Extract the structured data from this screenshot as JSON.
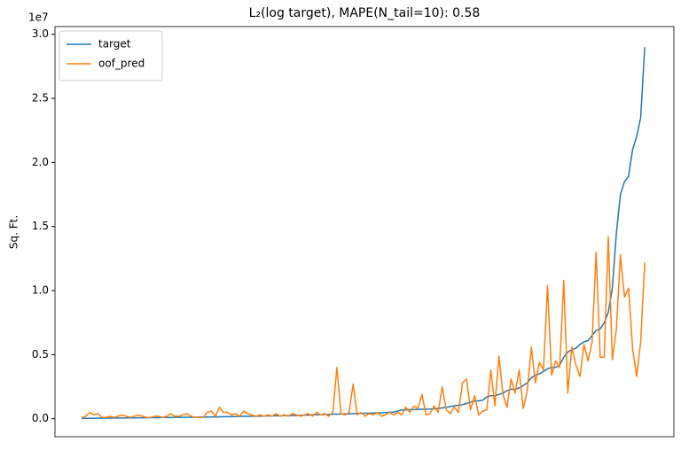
{
  "chart_data": {
    "type": "line",
    "title": "L₂(log target), MAPE(N_tail=10): 0.58",
    "ylabel": "Sq. Ft.",
    "y_offset_label": "1e7",
    "xlim": [
      -6.6,
      146.2
    ],
    "ylim": [
      -0.14,
      3.06
    ],
    "yticks": [
      {
        "value": 0,
        "label": "0.0"
      },
      0.5,
      {
        "value": 1,
        "label": "1.0"
      },
      1.5,
      {
        "value": 2,
        "label": "2.0"
      },
      2.5,
      {
        "value": 3,
        "label": "3.0"
      }
    ],
    "grid": false,
    "legend": "upper left",
    "series": [
      {
        "name": "target",
        "color": "#1f77b4",
        "values": [
          0.002,
          0.003,
          0.003,
          0.004,
          0.004,
          0.005,
          0.005,
          0.005,
          0.006,
          0.006,
          0.006,
          0.007,
          0.007,
          0.007,
          0.008,
          0.008,
          0.008,
          0.009,
          0.009,
          0.009,
          0.01,
          0.01,
          0.01,
          0.011,
          0.011,
          0.011,
          0.012,
          0.012,
          0.012,
          0.013,
          0.013,
          0.014,
          0.014,
          0.015,
          0.015,
          0.016,
          0.016,
          0.017,
          0.017,
          0.018,
          0.019,
          0.019,
          0.02,
          0.02,
          0.021,
          0.021,
          0.022,
          0.022,
          0.023,
          0.023,
          0.024,
          0.025,
          0.025,
          0.026,
          0.027,
          0.028,
          0.029,
          0.03,
          0.031,
          0.032,
          0.033,
          0.034,
          0.035,
          0.036,
          0.037,
          0.038,
          0.039,
          0.04,
          0.041,
          0.042,
          0.043,
          0.044,
          0.045,
          0.046,
          0.047,
          0.048,
          0.05,
          0.052,
          0.06,
          0.068,
          0.07,
          0.071,
          0.072,
          0.073,
          0.074,
          0.075,
          0.076,
          0.078,
          0.08,
          0.085,
          0.09,
          0.095,
          0.1,
          0.105,
          0.11,
          0.12,
          0.13,
          0.14,
          0.14,
          0.145,
          0.17,
          0.18,
          0.18,
          0.19,
          0.2,
          0.22,
          0.23,
          0.23,
          0.24,
          0.26,
          0.28,
          0.32,
          0.34,
          0.35,
          0.37,
          0.39,
          0.4,
          0.4,
          0.42,
          0.48,
          0.52,
          0.54,
          0.55,
          0.58,
          0.6,
          0.61,
          0.65,
          0.69,
          0.7,
          0.75,
          0.83,
          1.02,
          1.45,
          1.75,
          1.85,
          1.89,
          2.1,
          2.2,
          2.35,
          2.9
        ]
      },
      {
        "name": "oof_pred",
        "color": "#ff7f0e",
        "values": [
          0.01,
          0.02,
          0.05,
          0.03,
          0.04,
          0.01,
          0.01,
          0.02,
          0.01,
          0.02,
          0.03,
          0.02,
          0.01,
          0.02,
          0.03,
          0.02,
          0.01,
          0.01,
          0.02,
          0.02,
          0.01,
          0.02,
          0.04,
          0.02,
          0.02,
          0.03,
          0.04,
          0.02,
          0.01,
          0.01,
          0.01,
          0.05,
          0.06,
          0.02,
          0.09,
          0.05,
          0.05,
          0.03,
          0.04,
          0.02,
          0.06,
          0.04,
          0.03,
          0.02,
          0.03,
          0.02,
          0.03,
          0.02,
          0.04,
          0.02,
          0.03,
          0.02,
          0.04,
          0.03,
          0.02,
          0.03,
          0.04,
          0.02,
          0.05,
          0.03,
          0.04,
          0.02,
          0.05,
          0.4,
          0.04,
          0.03,
          0.05,
          0.27,
          0.03,
          0.05,
          0.02,
          0.04,
          0.03,
          0.05,
          0.02,
          0.03,
          0.05,
          0.03,
          0.05,
          0.03,
          0.09,
          0.05,
          0.1,
          0.08,
          0.19,
          0.03,
          0.04,
          0.1,
          0.05,
          0.25,
          0.07,
          0.04,
          0.09,
          0.05,
          0.28,
          0.31,
          0.07,
          0.18,
          0.03,
          0.06,
          0.07,
          0.38,
          0.1,
          0.49,
          0.19,
          0.09,
          0.31,
          0.2,
          0.38,
          0.08,
          0.22,
          0.56,
          0.28,
          0.44,
          0.38,
          1.04,
          0.34,
          0.45,
          0.4,
          1.08,
          0.2,
          0.56,
          0.42,
          0.33,
          0.58,
          0.45,
          0.6,
          1.3,
          0.48,
          0.48,
          1.42,
          0.46,
          0.7,
          1.28,
          0.95,
          1.02,
          0.55,
          0.33,
          0.6,
          1.22
        ]
      }
    ]
  }
}
